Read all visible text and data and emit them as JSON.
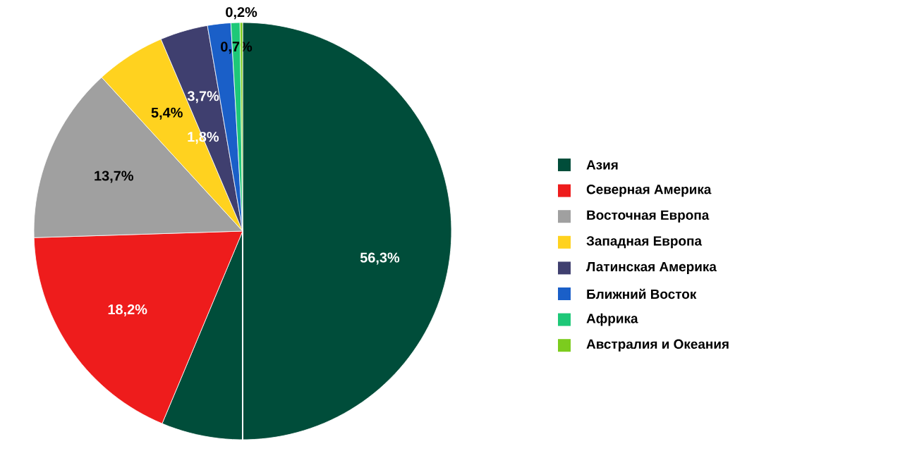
{
  "chart_data": {
    "type": "pie",
    "categories": [
      "Азия",
      "Северная Америка",
      "Восточная Европа",
      "Западная Европа",
      "Латинская Америка",
      "Ближний Восток",
      "Африка",
      "Австралия и Океания"
    ],
    "values": [
      56.3,
      18.2,
      13.7,
      5.4,
      3.7,
      1.8,
      0.7,
      0.2
    ],
    "value_labels": [
      "56,3%",
      "18,2%",
      "13,7%",
      "5,4%",
      "3,7%",
      "1,8%",
      "0,7%",
      "0,2%"
    ],
    "colors": [
      "#004d3a",
      "#ee1c1c",
      "#a0a0a0",
      "#ffd21f",
      "#3f3f6f",
      "#1a5fc8",
      "#1ec878",
      "#7ccc1e"
    ],
    "legend": "right"
  }
}
